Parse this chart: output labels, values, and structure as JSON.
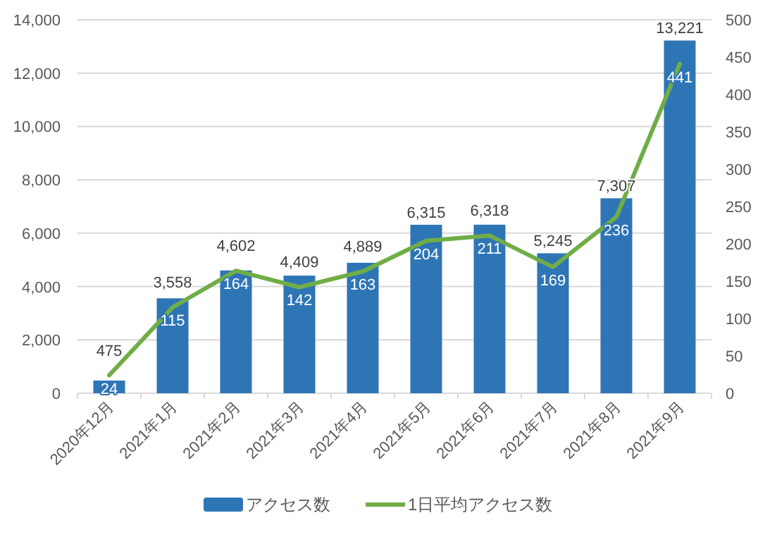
{
  "chart_data": {
    "type": "bar",
    "categories": [
      "2020年12月",
      "2021年1月",
      "2021年2月",
      "2021年3月",
      "2021年4月",
      "2021年5月",
      "2021年6月",
      "2021年7月",
      "2021年8月",
      "2021年9月"
    ],
    "series": [
      {
        "name": "アクセス数",
        "type": "bar",
        "color": "#2e75b6",
        "values": [
          475,
          3558,
          4602,
          4409,
          4889,
          6315,
          6318,
          5245,
          7307,
          13221
        ],
        "value_labels": [
          "475",
          "3,558",
          "4,602",
          "4,409",
          "4,889",
          "6,315",
          "6,318",
          "5,245",
          "7,307",
          "13,221"
        ]
      },
      {
        "name": "1日平均アクセス数",
        "type": "line",
        "axis": "y2",
        "color": "#70ad47",
        "values": [
          24,
          115,
          164,
          142,
          163,
          204,
          211,
          169,
          236,
          441
        ],
        "value_labels": [
          "24",
          "115",
          "164",
          "142",
          "163",
          "204",
          "211",
          "169",
          "236",
          "441"
        ]
      }
    ],
    "ylim": [
      0,
      14000
    ],
    "yticks": [
      0,
      {
        "value": 2000,
        "label": "2,000"
      },
      {
        "value": 4000,
        "label": "4,000"
      },
      {
        "value": 6000,
        "label": "6,000"
      },
      {
        "value": 8000,
        "label": "8,000"
      },
      {
        "value": 10000,
        "label": "10,000"
      },
      {
        "value": 12000,
        "label": "12,000"
      },
      {
        "value": 14000,
        "label": "14,000"
      }
    ],
    "y2lim": [
      0,
      500
    ],
    "y2ticks": [
      0,
      50,
      100,
      150,
      200,
      250,
      300,
      350,
      400,
      450,
      500
    ],
    "grid": "y",
    "legend": "bottom"
  }
}
